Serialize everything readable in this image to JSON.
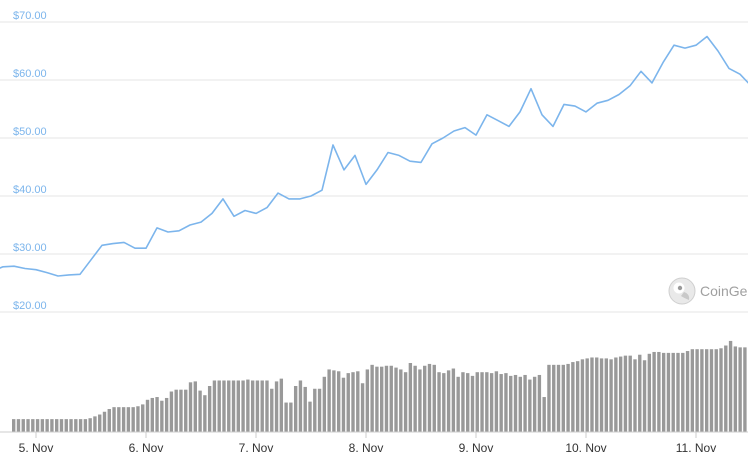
{
  "chart_data": {
    "type": "line",
    "x_axis_type": "date",
    "x_tick_labels": [
      "5. Nov",
      "6. Nov",
      "7. Nov",
      "8. Nov",
      "9. Nov",
      "10. Nov",
      "11. Nov"
    ],
    "y_tick_labels": [
      "$20.00",
      "$30.00",
      "$40.00",
      "$50.00",
      "$60.00",
      "$70.00"
    ],
    "ylim": [
      20,
      70
    ],
    "grid": true,
    "colors": {
      "price_line": "#7cb5ec",
      "volume_bars": "#999999",
      "grid": "#e6e6e6",
      "ytick": "#7cb5ec"
    },
    "price": {
      "x": [
        4.6,
        4.7,
        4.8,
        4.9,
        5.0,
        5.1,
        5.2,
        5.3,
        5.4,
        5.5,
        5.6,
        5.7,
        5.8,
        5.9,
        6.0,
        6.1,
        6.2,
        6.3,
        6.4,
        6.5,
        6.6,
        6.7,
        6.8,
        6.9,
        7.0,
        7.1,
        7.2,
        7.3,
        7.4,
        7.5,
        7.6,
        7.7,
        7.8,
        7.9,
        8.0,
        8.1,
        8.2,
        8.3,
        8.4,
        8.5,
        8.6,
        8.7,
        8.8,
        8.9,
        9.0,
        9.1,
        9.2,
        9.3,
        9.4,
        9.5,
        9.6,
        9.7,
        9.8,
        9.9,
        10.0,
        10.1,
        10.2,
        10.3,
        10.4,
        10.5,
        10.6,
        10.7,
        10.8,
        10.9,
        11.0,
        11.1,
        11.2,
        11.3,
        11.4,
        11.5,
        11.6
      ],
      "y": [
        27,
        27.8,
        27.9,
        27.5,
        27.3,
        26.8,
        26.2,
        26.4,
        26.5,
        29,
        31.5,
        31.8,
        32,
        31,
        31,
        34.5,
        33.8,
        34,
        35,
        35.5,
        37,
        39.5,
        36.5,
        37.5,
        37,
        38,
        40.5,
        39.5,
        39.5,
        40,
        41,
        48.8,
        44.5,
        47,
        42,
        44.5,
        47.5,
        47,
        46,
        45.8,
        49,
        50,
        51.2,
        51.8,
        50.5,
        54,
        53,
        52,
        54.5,
        58.5,
        54,
        52,
        55.8,
        55.5,
        54.5,
        56,
        56.5,
        57.5,
        59,
        61.5,
        59.5,
        63,
        66,
        65.5,
        66,
        67.5,
        65,
        62,
        61,
        59,
        57
      ]
    },
    "volume": {
      "unit": "relative",
      "values": [
        0.14,
        0.14,
        0.14,
        0.14,
        0.14,
        0.14,
        0.14,
        0.14,
        0.14,
        0.14,
        0.14,
        0.14,
        0.14,
        0.14,
        0.14,
        0.14,
        0.15,
        0.17,
        0.19,
        0.22,
        0.25,
        0.27,
        0.27,
        0.27,
        0.27,
        0.27,
        0.28,
        0.3,
        0.35,
        0.37,
        0.38,
        0.34,
        0.37,
        0.44,
        0.46,
        0.46,
        0.46,
        0.54,
        0.55,
        0.45,
        0.4,
        0.5,
        0.56,
        0.56,
        0.56,
        0.56,
        0.56,
        0.56,
        0.56,
        0.57,
        0.56,
        0.56,
        0.56,
        0.56,
        0.47,
        0.55,
        0.58,
        0.32,
        0.32,
        0.5,
        0.56,
        0.49,
        0.33,
        0.47,
        0.47,
        0.6,
        0.68,
        0.67,
        0.66,
        0.59,
        0.64,
        0.65,
        0.66,
        0.53,
        0.68,
        0.73,
        0.71,
        0.71,
        0.72,
        0.72,
        0.7,
        0.68,
        0.65,
        0.75,
        0.72,
        0.68,
        0.72,
        0.74,
        0.73,
        0.65,
        0.64,
        0.67,
        0.69,
        0.6,
        0.65,
        0.64,
        0.61,
        0.65,
        0.65,
        0.65,
        0.64,
        0.66,
        0.63,
        0.64,
        0.61,
        0.62,
        0.6,
        0.62,
        0.57,
        0.6,
        0.62,
        0.38,
        0.73,
        0.73,
        0.73,
        0.73,
        0.74,
        0.76,
        0.77,
        0.79,
        0.8,
        0.81,
        0.81,
        0.8,
        0.8,
        0.79,
        0.81,
        0.82,
        0.83,
        0.83,
        0.79,
        0.84,
        0.78,
        0.85,
        0.87,
        0.87,
        0.86,
        0.86,
        0.86,
        0.86,
        0.86,
        0.88,
        0.9,
        0.9,
        0.9,
        0.9,
        0.9,
        0.9,
        0.91,
        0.94,
        0.99,
        0.93,
        0.92,
        0.92
      ]
    },
    "watermark": {
      "text": "CoinGe",
      "icon": "coingecko-gecko-icon"
    }
  }
}
